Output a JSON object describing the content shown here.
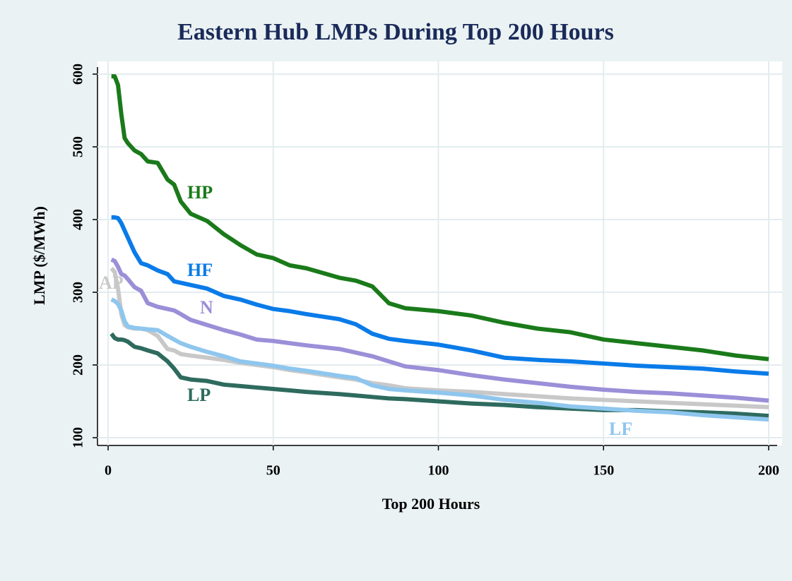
{
  "chart_data": {
    "type": "line",
    "title": "Eastern Hub LMPs During Top 200 Hours",
    "x_label": "Top 200 Hours",
    "y_label": "LMP ($/MWh)",
    "xlim": [
      0,
      200
    ],
    "xticks": [
      0,
      50,
      100,
      150,
      200
    ],
    "ylim": [
      100,
      600
    ],
    "yticks": [
      100,
      200,
      300,
      400,
      500,
      600
    ],
    "grid": true,
    "x": [
      1,
      2,
      3,
      4,
      5,
      6,
      8,
      10,
      12,
      15,
      18,
      20,
      22,
      25,
      30,
      35,
      40,
      45,
      50,
      55,
      60,
      70,
      75,
      80,
      85,
      90,
      100,
      110,
      120,
      130,
      140,
      150,
      160,
      170,
      180,
      190,
      200
    ],
    "series": [
      {
        "name": "LP",
        "color": "#2e6b5e",
        "values": [
          243,
          237,
          235,
          235,
          234,
          232,
          225,
          223,
          220,
          216,
          205,
          195,
          183,
          180,
          178,
          173,
          171,
          169,
          167,
          165,
          163,
          160,
          158,
          156,
          154,
          153,
          150,
          147,
          145,
          142,
          140,
          138,
          138,
          136,
          135,
          133,
          130
        ]
      },
      {
        "name": "AP",
        "color": "#c8c8c8",
        "values": [
          333,
          328,
          305,
          270,
          255,
          252,
          250,
          250,
          248,
          240,
          222,
          220,
          215,
          213,
          210,
          207,
          203,
          200,
          197,
          193,
          190,
          183,
          180,
          175,
          172,
          168,
          165,
          163,
          160,
          157,
          154,
          152,
          150,
          148,
          146,
          144,
          142
        ]
      },
      {
        "name": "LF",
        "color": "#8ec6ee",
        "values": [
          290,
          288,
          284,
          275,
          260,
          253,
          251,
          250,
          249,
          248,
          240,
          235,
          230,
          225,
          218,
          212,
          205,
          202,
          199,
          195,
          192,
          185,
          182,
          172,
          167,
          165,
          162,
          158,
          152,
          148,
          143,
          140,
          137,
          135,
          131,
          128,
          125
        ]
      },
      {
        "name": "N",
        "color": "#9b8fd8",
        "values": [
          345,
          343,
          335,
          325,
          323,
          318,
          307,
          302,
          285,
          280,
          277,
          275,
          270,
          262,
          255,
          248,
          242,
          235,
          233,
          230,
          227,
          222,
          217,
          212,
          205,
          198,
          193,
          186,
          180,
          175,
          170,
          166,
          163,
          161,
          158,
          155,
          151
        ]
      },
      {
        "name": "HF",
        "color": "#0a7be8",
        "values": [
          403,
          403,
          402,
          395,
          385,
          375,
          355,
          340,
          337,
          330,
          325,
          315,
          313,
          310,
          305,
          295,
          290,
          283,
          277,
          274,
          270,
          263,
          256,
          243,
          236,
          233,
          228,
          220,
          210,
          207,
          205,
          202,
          199,
          197,
          195,
          191,
          188
        ]
      },
      {
        "name": "HP",
        "color": "#1a7a1a",
        "values": [
          597,
          597,
          585,
          545,
          512,
          505,
          495,
          490,
          480,
          478,
          455,
          448,
          425,
          408,
          398,
          380,
          365,
          352,
          347,
          337,
          333,
          320,
          316,
          308,
          285,
          278,
          274,
          268,
          258,
          250,
          245,
          235,
          230,
          225,
          220,
          213,
          208
        ]
      }
    ]
  }
}
